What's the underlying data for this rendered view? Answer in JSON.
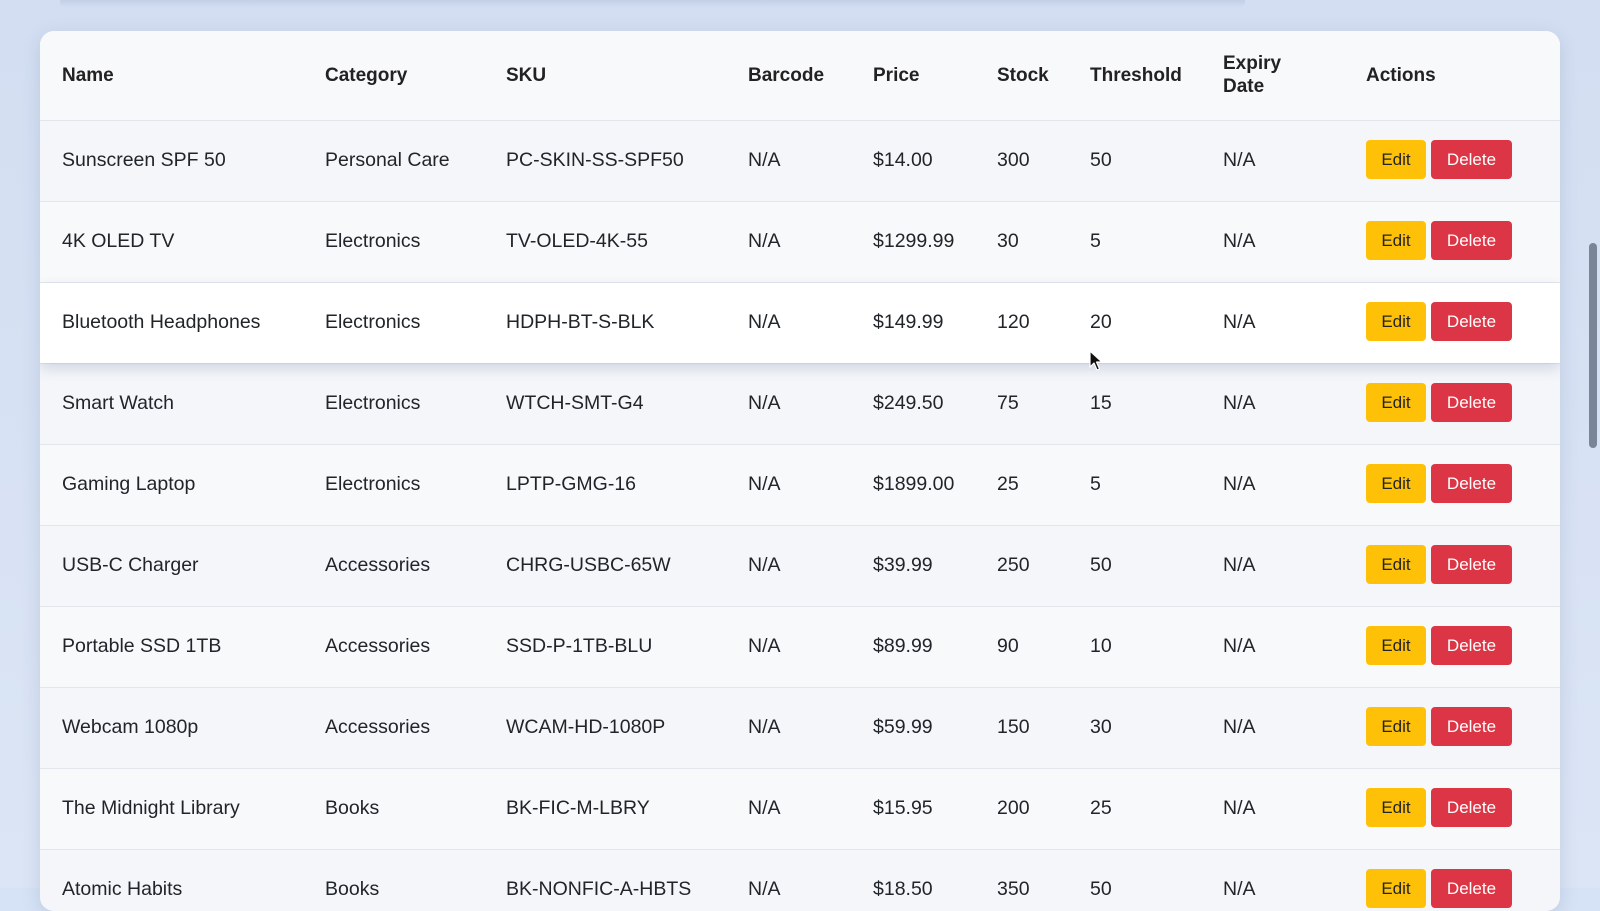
{
  "table": {
    "headers": {
      "name": "Name",
      "category": "Category",
      "sku": "SKU",
      "barcode": "Barcode",
      "price": "Price",
      "stock": "Stock",
      "threshold": "Threshold",
      "expiry_line1": "Expiry",
      "expiry_line2": "Date",
      "actions": "Actions"
    },
    "edit_label": "Edit",
    "delete_label": "Delete",
    "rows": [
      {
        "name": "Sunscreen SPF 50",
        "category": "Personal Care",
        "sku": "PC-SKIN-SS-SPF50",
        "barcode": "N/A",
        "price": "$14.00",
        "stock": "300",
        "threshold": "50",
        "expiry": "N/A"
      },
      {
        "name": "4K OLED TV",
        "category": "Electronics",
        "sku": "TV-OLED-4K-55",
        "barcode": "N/A",
        "price": "$1299.99",
        "stock": "30",
        "threshold": "5",
        "expiry": "N/A"
      },
      {
        "name": "Bluetooth Headphones",
        "category": "Electronics",
        "sku": "HDPH-BT-S-BLK",
        "barcode": "N/A",
        "price": "$149.99",
        "stock": "120",
        "threshold": "20",
        "expiry": "N/A"
      },
      {
        "name": "Smart Watch",
        "category": "Electronics",
        "sku": "WTCH-SMT-G4",
        "barcode": "N/A",
        "price": "$249.50",
        "stock": "75",
        "threshold": "15",
        "expiry": "N/A"
      },
      {
        "name": "Gaming Laptop",
        "category": "Electronics",
        "sku": "LPTP-GMG-16",
        "barcode": "N/A",
        "price": "$1899.00",
        "stock": "25",
        "threshold": "5",
        "expiry": "N/A"
      },
      {
        "name": "USB-C Charger",
        "category": "Accessories",
        "sku": "CHRG-USBC-65W",
        "barcode": "N/A",
        "price": "$39.99",
        "stock": "250",
        "threshold": "50",
        "expiry": "N/A"
      },
      {
        "name": "Portable SSD 1TB",
        "category": "Accessories",
        "sku": "SSD-P-1TB-BLU",
        "barcode": "N/A",
        "price": "$89.99",
        "stock": "90",
        "threshold": "10",
        "expiry": "N/A"
      },
      {
        "name": "Webcam 1080p",
        "category": "Accessories",
        "sku": "WCAM-HD-1080P",
        "barcode": "N/A",
        "price": "$59.99",
        "stock": "150",
        "threshold": "30",
        "expiry": "N/A"
      },
      {
        "name": "The Midnight Library",
        "category": "Books",
        "sku": "BK-FIC-M-LBRY",
        "barcode": "N/A",
        "price": "$15.95",
        "stock": "200",
        "threshold": "25",
        "expiry": "N/A"
      },
      {
        "name": "Atomic Habits",
        "category": "Books",
        "sku": "BK-NONFIC-A-HBTS",
        "barcode": "N/A",
        "price": "$18.50",
        "stock": "350",
        "threshold": "50",
        "expiry": "N/A"
      }
    ]
  },
  "colors": {
    "edit": "#ffc107",
    "delete": "#dc3545",
    "background": "#d6e2f5",
    "card": "#f8f9fb"
  },
  "icons": {
    "cursor": "mouse-pointer-icon"
  }
}
